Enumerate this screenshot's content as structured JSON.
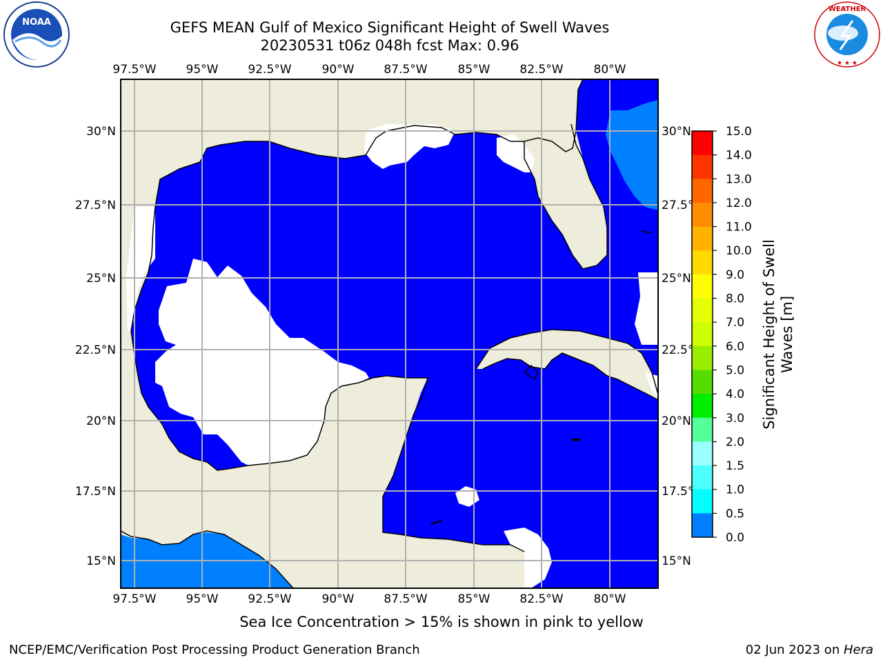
{
  "title": {
    "line1": "GEFS MEAN Gulf of Mexico Significant Height of Swell Waves",
    "line2": "20230531 t06z 048h fcst   Max: 0.96"
  },
  "logos": {
    "left": "NOAA",
    "right": "NATIONAL WEATHER SERVICE"
  },
  "map": {
    "lon_labels": [
      "97.5°W",
      "95°W",
      "92.5°W",
      "90°W",
      "87.5°W",
      "85°W",
      "82.5°W",
      "80°W"
    ],
    "lat_labels_left": [
      "30°N",
      "27.5°N",
      "25°N",
      "22.5°N",
      "20°N",
      "17.5°N",
      "15°N"
    ],
    "lat_labels_right": [
      "30°N",
      "27.5°N",
      "25°N",
      "22.5°N",
      "20°N",
      "17.5°N",
      "15°N"
    ],
    "colors": {
      "land": "#eeeddb",
      "swell_0_0.5": "#0000ff",
      "swell_0.5_1": "#0080ff",
      "grid": "#b0b0b0"
    }
  },
  "colorbar": {
    "label_line1": "Significant Height of Swell",
    "label_line2": "Waves [m]",
    "ticks": [
      "15.0",
      "14.0",
      "13.0",
      "12.0",
      "11.0",
      "10.0",
      "9.0",
      "8.0",
      "7.0",
      "6.0",
      "5.0",
      "4.0",
      "3.0",
      "2.0",
      "1.5",
      "1.0",
      "0.5",
      "0.0"
    ],
    "colors": [
      "#ff0000",
      "#ff3300",
      "#ff6600",
      "#ff8c00",
      "#ffb300",
      "#ffd900",
      "#ffff00",
      "#e6ff00",
      "#ccff00",
      "#99ee00",
      "#55dd00",
      "#00ee00",
      "#55ff99",
      "#99ffff",
      "#4dffff",
      "#00ffff",
      "#0080ff",
      "#0000ff"
    ]
  },
  "caption": "Sea Ice Concentration > 15% is shown in pink to yellow",
  "footer": {
    "left": "NCEP/EMC/Verification Post Processing Product Generation Branch",
    "right_date": "02 Jun 2023 on ",
    "right_host": "Hera"
  }
}
